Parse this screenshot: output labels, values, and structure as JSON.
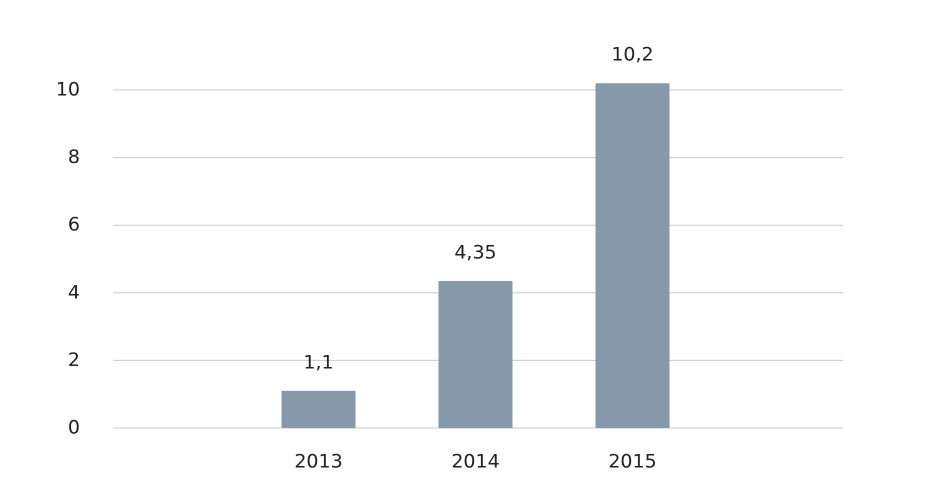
{
  "chart_data": {
    "type": "bar",
    "categories": [
      "2013",
      "2014",
      "2015"
    ],
    "values": [
      1.1,
      4.35,
      10.2
    ],
    "value_labels": [
      "1,1",
      "4,35",
      "10,2"
    ],
    "color": "#8599aa",
    "ylim": [
      0,
      10.9
    ],
    "yticks": [
      0,
      2,
      4,
      6,
      8,
      10
    ],
    "grid": true
  }
}
